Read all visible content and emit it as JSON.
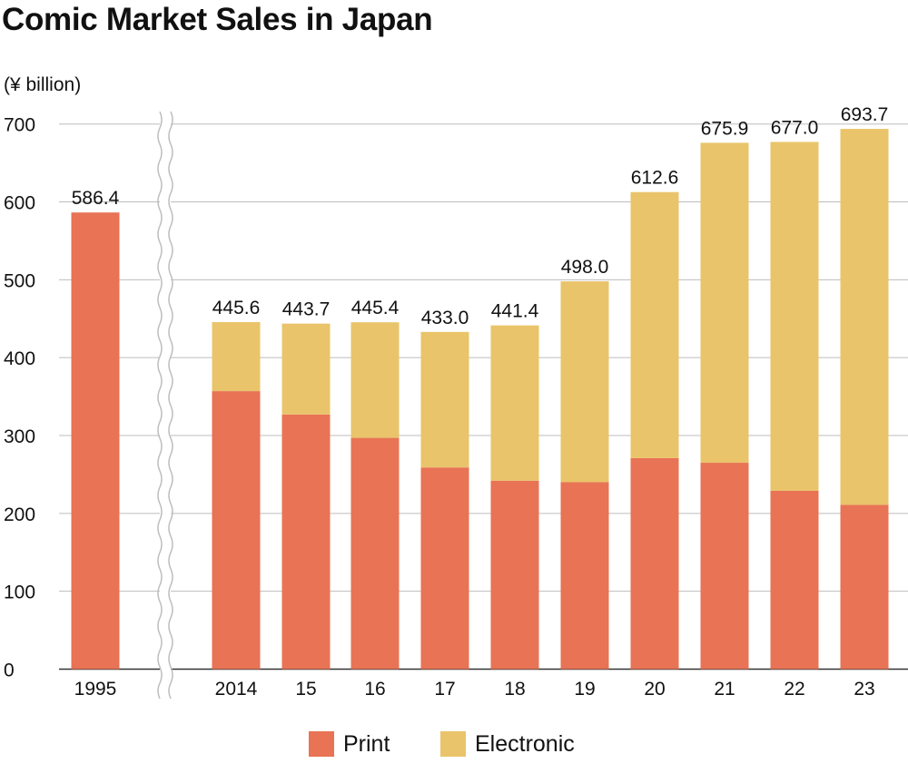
{
  "chart_data": {
    "type": "bar",
    "stacked": true,
    "title": "Comic Market Sales in Japan",
    "ylabel": "(¥ billion)",
    "xlabel": "",
    "ylim": [
      0,
      700
    ],
    "yticks": [
      0,
      100,
      200,
      300,
      400,
      500,
      600,
      700
    ],
    "grid": true,
    "axis_break_after": "1995",
    "categories": [
      "1995",
      "2014",
      "15",
      "16",
      "17",
      "18",
      "19",
      "20",
      "21",
      "22",
      "23"
    ],
    "series": [
      {
        "name": "Print",
        "color": "#e87355",
        "values": [
          586.4,
          357,
          327,
          297,
          259,
          242,
          240,
          271,
          265,
          229,
          211
        ]
      },
      {
        "name": "Electronic",
        "color": "#eac46a",
        "values": [
          0,
          88.6,
          116.7,
          148.4,
          174.0,
          199.4,
          258.0,
          341.6,
          410.9,
          448.0,
          482.7
        ]
      }
    ],
    "totals": [
      "586.4",
      "445.6",
      "443.7",
      "445.4",
      "433.0",
      "441.4",
      "498.0",
      "612.6",
      "675.9",
      "677.0",
      "693.7"
    ],
    "legend": [
      "Print",
      "Electronic"
    ],
    "legend_position": "bottom-center"
  }
}
